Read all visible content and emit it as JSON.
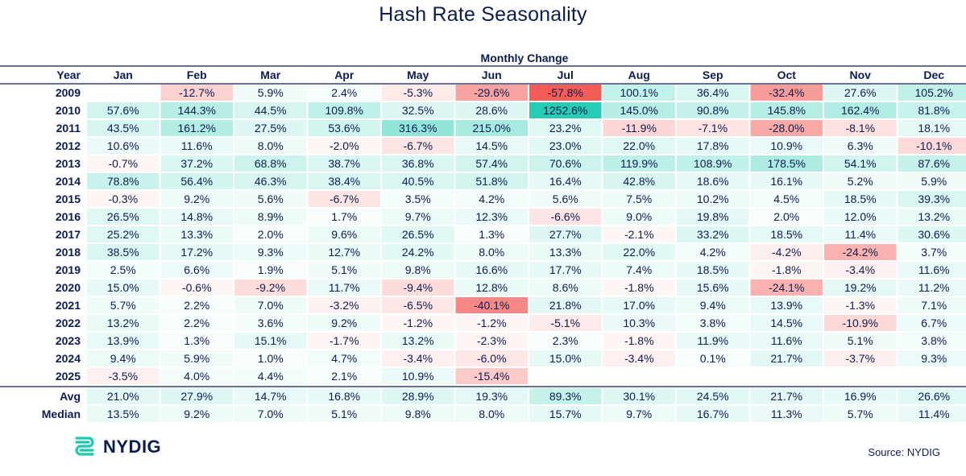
{
  "chart_data": {
    "type": "table",
    "title": "Hash Rate Seasonality",
    "subtitle": "Monthly Change",
    "row_header": "Year",
    "columns": [
      "Jan",
      "Feb",
      "Mar",
      "Apr",
      "May",
      "Jun",
      "Jul",
      "Aug",
      "Sep",
      "Oct",
      "Nov",
      "Dec"
    ],
    "rows": [
      {
        "label": "2009",
        "values": [
          null,
          -12.7,
          5.9,
          2.4,
          -5.3,
          -29.6,
          -57.8,
          100.1,
          36.4,
          -32.4,
          27.6,
          105.2
        ]
      },
      {
        "label": "2010",
        "values": [
          57.6,
          144.3,
          44.5,
          109.8,
          32.5,
          28.6,
          1252.6,
          145.0,
          90.8,
          145.8,
          162.4,
          81.8
        ]
      },
      {
        "label": "2011",
        "values": [
          43.5,
          161.2,
          27.5,
          53.6,
          316.3,
          215.0,
          23.2,
          -11.9,
          -7.1,
          -28.0,
          -8.1,
          18.1
        ]
      },
      {
        "label": "2012",
        "values": [
          10.6,
          11.6,
          8.0,
          -2.0,
          -6.7,
          14.5,
          23.0,
          22.0,
          17.8,
          10.9,
          6.3,
          -10.1
        ]
      },
      {
        "label": "2013",
        "values": [
          -0.7,
          37.2,
          68.8,
          38.7,
          36.8,
          57.4,
          70.6,
          119.9,
          108.9,
          178.5,
          54.1,
          87.6
        ]
      },
      {
        "label": "2014",
        "values": [
          78.8,
          56.4,
          46.3,
          38.4,
          40.5,
          51.8,
          16.4,
          42.8,
          18.6,
          16.1,
          5.2,
          5.9
        ]
      },
      {
        "label": "2015",
        "values": [
          -0.3,
          9.2,
          5.6,
          -6.7,
          3.5,
          4.2,
          5.6,
          7.5,
          10.2,
          4.5,
          18.5,
          39.3
        ]
      },
      {
        "label": "2016",
        "values": [
          26.5,
          14.8,
          8.9,
          1.7,
          9.7,
          12.3,
          -6.6,
          9.0,
          19.8,
          2.0,
          12.0,
          13.2
        ]
      },
      {
        "label": "2017",
        "values": [
          25.2,
          13.3,
          2.0,
          9.6,
          26.5,
          1.3,
          27.7,
          -2.1,
          33.2,
          18.5,
          11.4,
          30.6
        ]
      },
      {
        "label": "2018",
        "values": [
          38.5,
          17.2,
          9.3,
          12.7,
          24.2,
          8.0,
          13.3,
          22.0,
          4.2,
          -4.2,
          -24.2,
          3.7
        ]
      },
      {
        "label": "2019",
        "values": [
          2.5,
          6.6,
          1.9,
          5.1,
          9.8,
          16.6,
          17.7,
          7.4,
          18.5,
          -1.8,
          -3.4,
          11.6
        ]
      },
      {
        "label": "2020",
        "values": [
          15.0,
          -0.6,
          -9.2,
          11.7,
          -9.4,
          12.8,
          8.6,
          -1.8,
          15.6,
          -24.1,
          19.2,
          11.2
        ]
      },
      {
        "label": "2021",
        "values": [
          5.7,
          2.2,
          7.0,
          -3.2,
          -6.5,
          -40.1,
          21.8,
          17.0,
          9.4,
          13.9,
          -1.3,
          7.1
        ]
      },
      {
        "label": "2022",
        "values": [
          13.2,
          2.2,
          3.6,
          9.2,
          -1.2,
          -1.2,
          -5.1,
          10.3,
          3.8,
          14.5,
          -10.9,
          6.7
        ]
      },
      {
        "label": "2023",
        "values": [
          13.9,
          1.3,
          15.1,
          -1.7,
          13.2,
          -2.3,
          2.3,
          -1.8,
          11.9,
          11.6,
          5.1,
          3.8
        ]
      },
      {
        "label": "2024",
        "values": [
          9.4,
          5.9,
          1.0,
          4.7,
          -3.4,
          -6.0,
          15.0,
          -3.4,
          0.1,
          21.7,
          -3.7,
          9.3
        ]
      },
      {
        "label": "2025",
        "values": [
          -3.5,
          4.0,
          4.4,
          2.1,
          10.9,
          -15.4,
          null,
          null,
          null,
          null,
          null,
          null
        ]
      }
    ],
    "summary_rows": [
      {
        "label": "Avg",
        "values": [
          21.0,
          27.9,
          14.7,
          16.8,
          28.9,
          19.3,
          89.3,
          30.1,
          24.5,
          21.7,
          16.9,
          26.6
        ]
      },
      {
        "label": "Median",
        "values": [
          13.5,
          9.2,
          7.0,
          5.1,
          9.8,
          8.0,
          15.7,
          9.7,
          16.7,
          11.3,
          5.7,
          11.4
        ]
      }
    ],
    "unit": "%",
    "colors": {
      "positive_strong": "#1cc9b0",
      "negative_strong": "#f25a55",
      "text": "#0d1c4f",
      "rule": "#0d1c4f"
    }
  },
  "footer": {
    "brand": "NYDIG",
    "source": "Source: NYDIG"
  }
}
